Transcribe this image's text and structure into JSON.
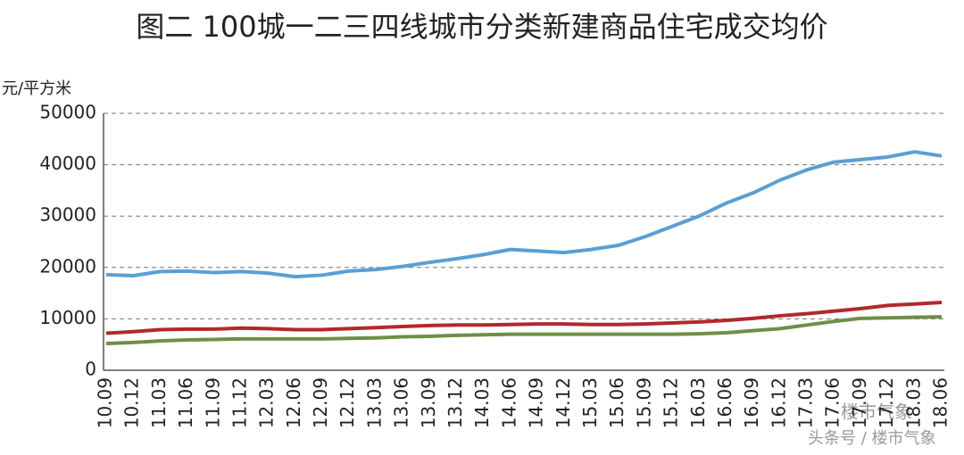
{
  "chart_data": {
    "type": "line",
    "title": "图二  100城一二三四线城市分类新建商品住宅成交均价",
    "y_label": "元/平方米",
    "categories": [
      "10.09",
      "10.12",
      "11.03",
      "11.06",
      "11.09",
      "11.12",
      "12.03",
      "12.06",
      "12.09",
      "12.12",
      "13.03",
      "13.06",
      "13.09",
      "13.12",
      "14.03",
      "14.06",
      "14.09",
      "14.12",
      "15.03",
      "15.06",
      "15.09",
      "15.12",
      "16.03",
      "16.06",
      "16.09",
      "16.12",
      "17.03",
      "17.06",
      "17.09",
      "17.12",
      "18.03",
      "18.06"
    ],
    "series": [
      {
        "color": "#5a9fd4",
        "values": [
          18600,
          18400,
          19200,
          19300,
          19000,
          19200,
          18900,
          18200,
          18500,
          19300,
          19600,
          20200,
          21000,
          21700,
          22500,
          23500,
          23200,
          22900,
          23500,
          24300,
          26000,
          28000,
          30000,
          32500,
          34500,
          37000,
          39000,
          40500,
          41000,
          41500,
          42500,
          41700
        ]
      },
      {
        "color": "#b3282d",
        "values": [
          7200,
          7500,
          7900,
          8000,
          8000,
          8200,
          8100,
          7900,
          7900,
          8100,
          8300,
          8500,
          8700,
          8800,
          8800,
          8900,
          9000,
          9000,
          8900,
          8900,
          9000,
          9200,
          9400,
          9700,
          10100,
          10600,
          11000,
          11500,
          12000,
          12600,
          12900,
          13200
        ]
      },
      {
        "color": "#6f8f45",
        "values": [
          5200,
          5400,
          5700,
          5900,
          6000,
          6100,
          6100,
          6100,
          6100,
          6200,
          6300,
          6500,
          6600,
          6800,
          6900,
          7000,
          7000,
          7000,
          7000,
          7000,
          7000,
          7000,
          7100,
          7300,
          7700,
          8100,
          8800,
          9500,
          10100,
          10200,
          10300,
          10400
        ]
      }
    ],
    "ylim": [
      0,
      50000
    ],
    "yticks": [
      0,
      10000,
      20000,
      30000,
      40000,
      50000
    ],
    "grid": true,
    "watermark": [
      "楼市气象",
      "头条号 / 楼市气象"
    ]
  }
}
